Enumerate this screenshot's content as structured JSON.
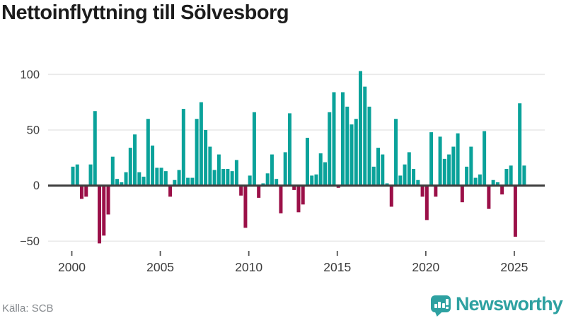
{
  "title": "Nettoinflyttning till Sölvesborg",
  "source": "Källa: SCB",
  "logo": {
    "wordmark": "Newsworthy"
  },
  "colors": {
    "positive_bar": "#0aa29a",
    "negative_bar": "#9b1048",
    "zero_line": "#3d3d3d",
    "gridline": "#e9e9e9",
    "axis_text": "#3c3c3c",
    "title_text": "#1c1c1c",
    "source_text": "#85898d",
    "logo_teal": "#2ea1a1"
  },
  "chart_data": {
    "type": "bar",
    "title": "Nettoinflyttning till Sölvesborg",
    "xlabel": "",
    "ylabel": "",
    "frequency": "quarterly",
    "start_period": "2000Q1",
    "end_period": "2025Q3",
    "ylim": [
      -62,
      112
    ],
    "grid": "horizontal",
    "legend": "none",
    "y_ticks": [
      {
        "label": "100",
        "value": 100
      },
      {
        "label": "50",
        "value": 50
      },
      {
        "label": "0",
        "value": 0
      },
      {
        "label": "−50",
        "value": -50
      }
    ],
    "x_ticks": [
      {
        "label": "2000",
        "year": 2000
      },
      {
        "label": "2005",
        "year": 2005
      },
      {
        "label": "2010",
        "year": 2010
      },
      {
        "label": "2015",
        "year": 2015
      },
      {
        "label": "2020",
        "year": 2020
      },
      {
        "label": "2025",
        "year": 2025
      }
    ],
    "series": [
      {
        "name": "Nettoinflyttning",
        "values": [
          17,
          19,
          -12,
          -10,
          19,
          67,
          -52,
          -45,
          -26,
          26,
          6,
          3,
          12,
          34,
          46,
          12,
          8,
          60,
          36,
          16,
          16,
          13,
          -10,
          5,
          14,
          69,
          7,
          7,
          60,
          75,
          50,
          35,
          14,
          28,
          15,
          15,
          13,
          23,
          -9,
          -38,
          9,
          66,
          -11,
          2,
          11,
          28,
          6,
          -25,
          30,
          65,
          -4,
          -24,
          -17,
          43,
          9,
          10,
          29,
          21,
          66,
          84,
          -2,
          84,
          71,
          55,
          60,
          103,
          89,
          71,
          17,
          34,
          28,
          2,
          -19,
          60,
          9,
          19,
          30,
          15,
          5,
          -10,
          -31,
          48,
          -10,
          44,
          24,
          28,
          35,
          47,
          -15,
          17,
          35,
          7,
          10,
          49,
          -21,
          5,
          3,
          -8,
          15,
          18,
          -46,
          74,
          18
        ]
      }
    ]
  }
}
